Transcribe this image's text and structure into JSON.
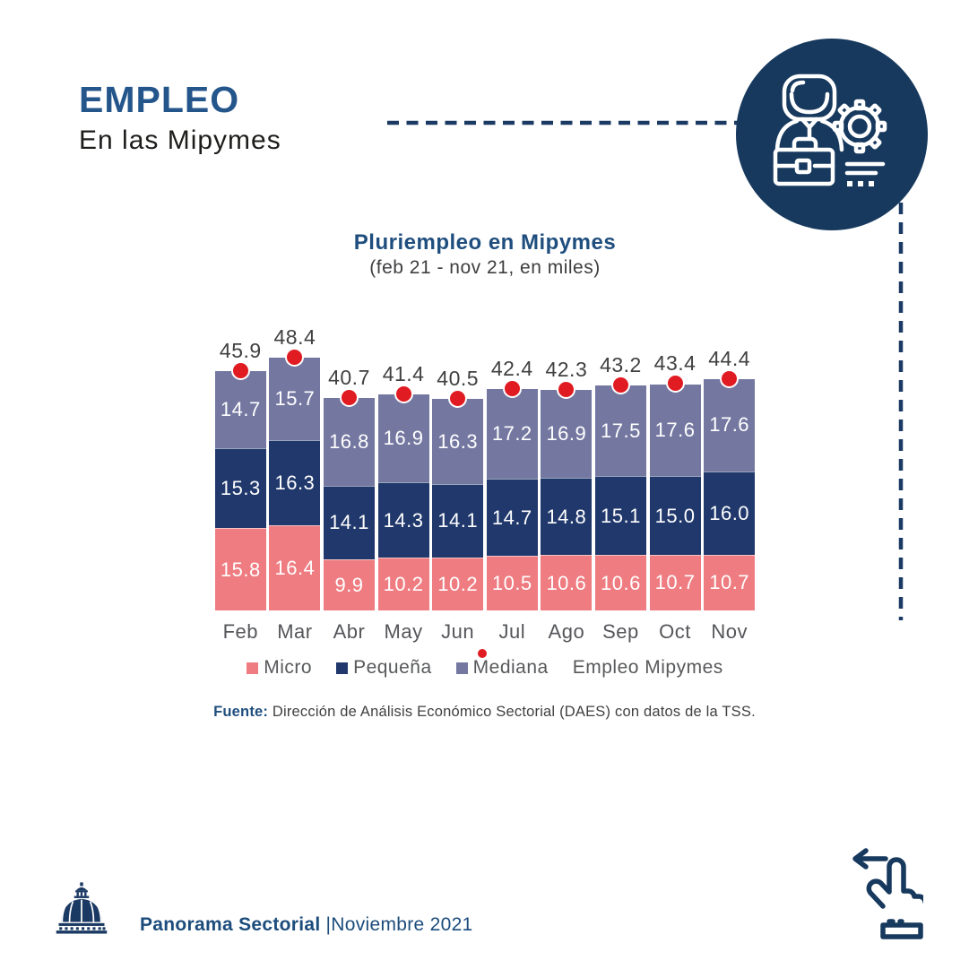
{
  "header": {
    "title": "EMPLEO",
    "subtitle": "En las Mipymes"
  },
  "chart": {
    "title": "Pluriempleo en Mipymes",
    "subtitle": "(feb 21 - nov 21, en miles)"
  },
  "chart_data": {
    "type": "bar",
    "stacked": true,
    "title": "Pluriempleo en Mipymes",
    "subtitle": "(feb 21 - nov 21, en miles)",
    "unit": "miles",
    "categories": [
      "Feb",
      "Mar",
      "Abr",
      "May",
      "Jun",
      "Jul",
      "Ago",
      "Sep",
      "Oct",
      "Nov"
    ],
    "series": [
      {
        "name": "Micro",
        "color": "#EE7C81",
        "values": [
          15.8,
          16.4,
          9.9,
          10.2,
          10.2,
          10.5,
          10.6,
          10.6,
          10.7,
          10.7
        ]
      },
      {
        "name": "Pequeña",
        "color": "#20386B",
        "values": [
          15.3,
          16.3,
          14.1,
          14.3,
          14.1,
          14.7,
          14.8,
          15.1,
          15.0,
          16.0
        ]
      },
      {
        "name": "Mediana",
        "color": "#7478A1",
        "values": [
          14.7,
          15.7,
          16.8,
          16.9,
          16.3,
          17.2,
          16.9,
          17.5,
          17.6,
          17.6
        ]
      }
    ],
    "totals": {
      "name": "Empleo Mipymes",
      "marker": "dot",
      "color": "#E01B22",
      "values": [
        45.9,
        48.4,
        40.7,
        41.4,
        40.5,
        42.4,
        42.3,
        43.2,
        43.4,
        44.4
      ]
    },
    "value_labels": "inside-segments",
    "legend_position": "bottom",
    "axes": {
      "x_visible": true,
      "y_visible": false,
      "gridlines": false
    }
  },
  "legend": [
    {
      "label": "Micro",
      "marker": "square",
      "color": "#EE7C81"
    },
    {
      "label": "Pequeña",
      "marker": "square",
      "color": "#20386B"
    },
    {
      "label": "Mediana",
      "marker": "square",
      "color": "#7478A1"
    },
    {
      "label": "Empleo Mipymes",
      "marker": "dot",
      "color": "#E01B22"
    }
  ],
  "source": {
    "label": "Fuente:",
    "text": " Dirección de Análisis Económico Sectorial (DAES) con datos de la TSS."
  },
  "footer": {
    "brand": "Panorama Sectorial",
    "edition": "|Noviembre 2021"
  },
  "colors": {
    "navy": "#1B3A63",
    "circle_navy": "#17395E",
    "heading_blue": "#24558B",
    "title_blue": "#1F4E7E",
    "text_gray": "#58595B",
    "label_dark": "#414042",
    "red": "#E01B22"
  }
}
